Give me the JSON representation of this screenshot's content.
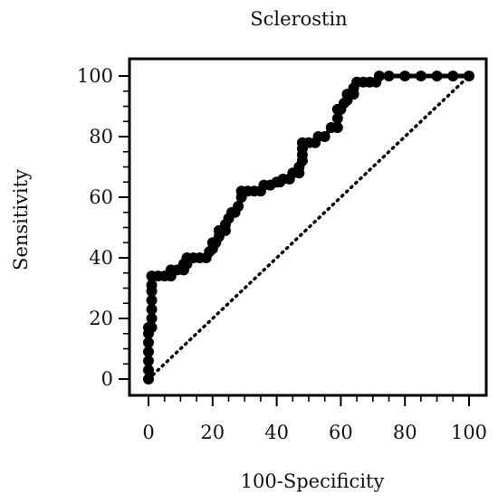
{
  "chart_data": {
    "type": "line",
    "title": "Sclerostin",
    "xlabel": "100-Specificity",
    "ylabel": "Sensitivity",
    "xlim": [
      0,
      100
    ],
    "ylim": [
      0,
      100
    ],
    "x_ticks": [
      0,
      20,
      40,
      60,
      80,
      100
    ],
    "y_ticks": [
      0,
      20,
      40,
      60,
      80,
      100
    ],
    "grid": false,
    "legend": "none",
    "series": [
      {
        "style": "solid black step curve with filled circle markers",
        "color": "#000000",
        "points": [
          [
            0,
            0
          ],
          [
            0,
            3
          ],
          [
            0,
            6
          ],
          [
            0,
            9
          ],
          [
            0,
            12
          ],
          [
            0,
            15
          ],
          [
            0,
            17
          ],
          [
            1,
            17
          ],
          [
            1,
            20
          ],
          [
            1,
            23
          ],
          [
            1,
            26
          ],
          [
            1,
            29
          ],
          [
            1,
            31
          ],
          [
            1,
            34
          ],
          [
            3,
            34
          ],
          [
            5,
            34
          ],
          [
            7,
            34
          ],
          [
            7,
            36
          ],
          [
            9,
            36
          ],
          [
            11,
            36
          ],
          [
            11,
            38
          ],
          [
            12,
            38
          ],
          [
            12,
            40
          ],
          [
            14,
            40
          ],
          [
            16,
            40
          ],
          [
            18,
            40
          ],
          [
            19,
            42
          ],
          [
            20,
            43
          ],
          [
            20,
            45
          ],
          [
            21,
            45
          ],
          [
            22,
            47
          ],
          [
            22,
            49
          ],
          [
            24,
            49
          ],
          [
            24,
            51
          ],
          [
            25,
            53
          ],
          [
            26,
            55
          ],
          [
            27,
            55
          ],
          [
            28,
            57
          ],
          [
            29,
            60
          ],
          [
            29,
            62
          ],
          [
            31,
            62
          ],
          [
            33,
            62
          ],
          [
            35,
            62
          ],
          [
            36,
            64
          ],
          [
            38,
            64
          ],
          [
            40,
            65
          ],
          [
            41,
            65
          ],
          [
            42,
            66
          ],
          [
            44,
            66
          ],
          [
            45,
            68
          ],
          [
            47,
            68
          ],
          [
            47,
            70
          ],
          [
            48,
            72
          ],
          [
            48,
            74
          ],
          [
            48,
            76
          ],
          [
            48,
            78
          ],
          [
            50,
            78
          ],
          [
            52,
            78
          ],
          [
            53,
            80
          ],
          [
            55,
            80
          ],
          [
            57,
            83
          ],
          [
            59,
            83
          ],
          [
            59,
            86
          ],
          [
            59,
            89
          ],
          [
            60,
            89
          ],
          [
            61,
            91
          ],
          [
            62,
            92
          ],
          [
            62,
            94
          ],
          [
            64,
            94
          ],
          [
            64,
            96
          ],
          [
            65,
            98
          ],
          [
            67,
            98
          ],
          [
            69,
            98
          ],
          [
            71,
            98
          ],
          [
            72,
            100
          ],
          [
            75,
            100
          ],
          [
            80,
            100
          ],
          [
            85,
            100
          ],
          [
            90,
            100
          ],
          [
            95,
            100
          ],
          [
            100,
            100
          ]
        ]
      },
      {
        "style": "dotted diagonal reference line",
        "color": "#000000",
        "points": [
          [
            0,
            0
          ],
          [
            100,
            100
          ]
        ]
      }
    ]
  }
}
